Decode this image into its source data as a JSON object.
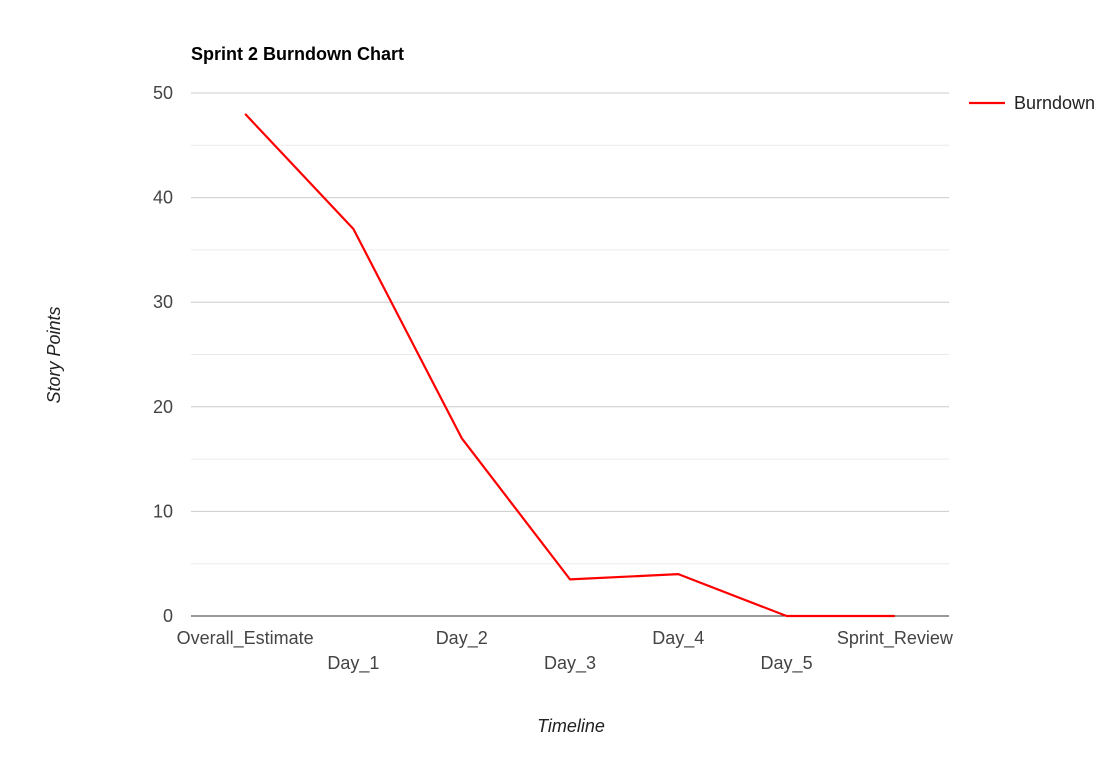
{
  "chart_data": {
    "type": "line",
    "title": "Sprint 2 Burndown Chart",
    "xlabel": "Timeline",
    "ylabel": "Story Points",
    "categories": [
      "Overall_Estimate",
      "Day_1",
      "Day_2",
      "Day_3",
      "Day_4",
      "Day_5",
      "Sprint_Review"
    ],
    "series": [
      {
        "name": "Burndown",
        "color": "#ff0000",
        "values": [
          48,
          37,
          17,
          3.5,
          4,
          0,
          0
        ]
      }
    ],
    "ylim": [
      0,
      50
    ],
    "yticks": [
      "0",
      "10",
      "20",
      "30",
      "40",
      "50"
    ],
    "grid": true,
    "legend_position": "right"
  }
}
